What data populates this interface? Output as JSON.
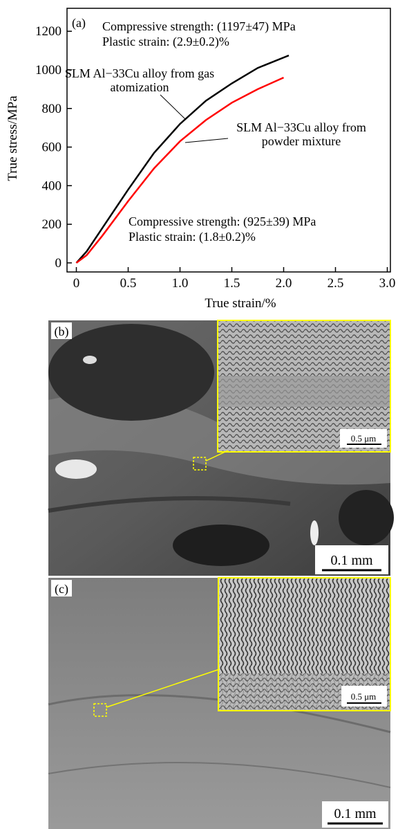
{
  "chart_data": {
    "type": "line",
    "panel_label": "(a)",
    "xlabel": "True strain/%",
    "ylabel": "True stress/MPa",
    "xlim": [
      -0.09,
      3.03
    ],
    "ylim": [
      -47,
      1319
    ],
    "xticks": [
      0,
      0.5,
      {
        "value": 1,
        "label": "1.0"
      },
      1.5,
      {
        "value": 2,
        "label": "2.0"
      },
      2.5,
      {
        "value": 3,
        "label": "3.0"
      }
    ],
    "yticks": [
      0,
      200,
      400,
      600,
      800,
      1000,
      1200
    ],
    "series": [
      {
        "name": "SLM Al−33Cu alloy from gas atomization",
        "color": "#000000",
        "x": [
          0,
          0.1,
          0.25,
          0.5,
          0.75,
          1.0,
          1.25,
          1.5,
          1.75,
          2.05
        ],
        "values": [
          0,
          60,
          180,
          380,
          570,
          720,
          840,
          930,
          1010,
          1075
        ]
      },
      {
        "name": "SLM Al−33Cu alloy from powder mixture",
        "color": "#ff0000",
        "x": [
          0,
          0.1,
          0.25,
          0.5,
          0.75,
          1.0,
          1.25,
          1.5,
          1.75,
          2.0
        ],
        "values": [
          0,
          40,
          140,
          320,
          490,
          630,
          740,
          830,
          900,
          960
        ]
      }
    ],
    "annotations": [
      "Compressive strength: (1197±47) MPa",
      "Plastic strain: (2.9±0.2)%",
      "Compressive strength: (925±39) MPa",
      "Plastic strain: (1.8±0.2)%"
    ]
  },
  "panels": [
    {
      "label": "(b)",
      "scale_bar": "0.1 mm",
      "inset_scale_bar": "0.5 μm"
    },
    {
      "label": "(c)",
      "scale_bar": "0.1 mm",
      "inset_scale_bar": "0.5 μm"
    }
  ]
}
